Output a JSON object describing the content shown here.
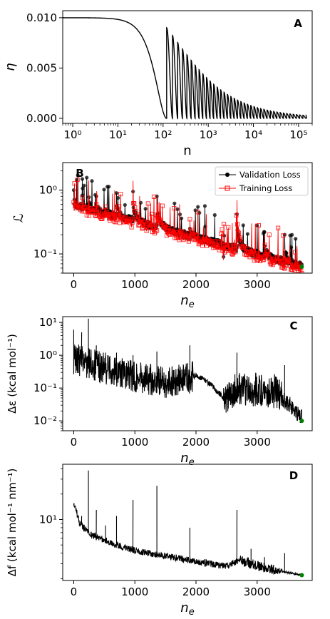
{
  "chart_data": [
    {
      "panel": "A",
      "type": "line",
      "xlabel": "n",
      "ylabel": "η",
      "xscale": "log",
      "xlim": [
        0.6,
        200000
      ],
      "ylim": [
        -0.0005,
        0.0107
      ],
      "xticks": [
        {
          "value": 1,
          "label": "10⁰"
        },
        {
          "value": 10,
          "label": "10¹"
        },
        {
          "value": 100,
          "label": "10²"
        },
        {
          "value": 1000,
          "label": "10³"
        },
        {
          "value": 10000,
          "label": "10⁴"
        },
        {
          "value": 100000,
          "label": "10⁵"
        }
      ],
      "yticks": [
        {
          "value": 0.0,
          "label": "0.000"
        },
        {
          "value": 0.005,
          "label": "0.005"
        },
        {
          "value": 0.01,
          "label": "0.010"
        }
      ],
      "color": "#000000",
      "schedule": {
        "eta_max": 0.01,
        "eta_min": 0.0,
        "first_restart": 120,
        "cycle_multiplier": 1.18,
        "n_max": 150000
      }
    },
    {
      "panel": "B",
      "type": "line",
      "xlabel": "n_e",
      "ylabel": "ℒ",
      "yscale": "log",
      "xlim": [
        -180,
        3900
      ],
      "ylim": [
        0.05,
        2.7
      ],
      "xticks": [
        {
          "value": 0,
          "label": "0"
        },
        {
          "value": 1000,
          "label": "1000"
        },
        {
          "value": 2000,
          "label": "2000"
        },
        {
          "value": 3000,
          "label": "3000"
        }
      ],
      "yticks": [
        {
          "value": 0.1,
          "label": "10⁻¹"
        },
        {
          "value": 1,
          "label": "10⁰"
        }
      ],
      "legend": "top-right",
      "restarts": [
        0,
        140,
        250,
        370,
        520,
        700,
        970,
        1360,
        1900,
        2450,
        2670,
        3120,
        3450
      ],
      "series": [
        {
          "name": "Validation Loss",
          "color": "#000000",
          "marker": "circle",
          "start": 0.6,
          "end": 0.065,
          "spikes": [
            {
              "x": 0,
              "y": 1.0
            },
            {
              "x": 130,
              "y": 0.85
            },
            {
              "x": 240,
              "y": 2.4
            },
            {
              "x": 370,
              "y": 0.8
            },
            {
              "x": 520,
              "y": 0.5
            },
            {
              "x": 700,
              "y": 0.9
            },
            {
              "x": 970,
              "y": 0.95
            },
            {
              "x": 1360,
              "y": 0.8
            },
            {
              "x": 1900,
              "y": 0.25
            },
            {
              "x": 2450,
              "y": 0.09
            },
            {
              "x": 2670,
              "y": 0.42
            },
            {
              "x": 3120,
              "y": 0.22
            },
            {
              "x": 3450,
              "y": 0.2
            }
          ]
        },
        {
          "name": "Training Loss",
          "color": "#ff0000",
          "marker": "square",
          "start": 0.55,
          "end": 0.06,
          "spikes": [
            {
              "x": 0,
              "y": 0.65
            },
            {
              "x": 130,
              "y": 0.5
            },
            {
              "x": 240,
              "y": 0.7
            },
            {
              "x": 370,
              "y": 0.6
            },
            {
              "x": 520,
              "y": 0.55
            },
            {
              "x": 700,
              "y": 0.6
            },
            {
              "x": 970,
              "y": 1.4
            },
            {
              "x": 1360,
              "y": 0.6
            },
            {
              "x": 1900,
              "y": 0.35
            },
            {
              "x": 2450,
              "y": 0.08
            },
            {
              "x": 2670,
              "y": 0.7
            },
            {
              "x": 3120,
              "y": 0.2
            },
            {
              "x": 3450,
              "y": 0.12
            }
          ]
        }
      ],
      "final_point": {
        "x": 3730,
        "y": 0.063,
        "color": "#008000"
      }
    },
    {
      "panel": "C",
      "type": "line",
      "xlabel": "n_e",
      "ylabel": "Δε (kcal mol⁻¹)",
      "yscale": "log",
      "xlim": [
        -180,
        3900
      ],
      "ylim": [
        0.005,
        15
      ],
      "xticks": [
        {
          "value": 0,
          "label": "0"
        },
        {
          "value": 1000,
          "label": "1000"
        },
        {
          "value": 2000,
          "label": "2000"
        },
        {
          "value": 3000,
          "label": "3000"
        }
      ],
      "yticks": [
        {
          "value": 0.01,
          "label": "10⁻²"
        },
        {
          "value": 0.1,
          "label": "10⁻¹"
        },
        {
          "value": 1,
          "label": "10⁰"
        },
        {
          "value": 10,
          "label": "10¹"
        }
      ],
      "color": "#000000",
      "trend": [
        {
          "x": 0,
          "y": 0.8
        },
        {
          "x": 500,
          "y": 0.4
        },
        {
          "x": 1000,
          "y": 0.22
        },
        {
          "x": 1500,
          "y": 0.15
        },
        {
          "x": 1900,
          "y": 0.2
        },
        {
          "x": 2000,
          "y": 0.25
        },
        {
          "x": 2200,
          "y": 0.15
        },
        {
          "x": 2500,
          "y": 0.04
        },
        {
          "x": 2650,
          "y": 0.1
        },
        {
          "x": 3300,
          "y": 0.08
        },
        {
          "x": 3700,
          "y": 0.015
        }
      ],
      "spikes": [
        {
          "x": 0,
          "y": 6
        },
        {
          "x": 130,
          "y": 5
        },
        {
          "x": 240,
          "y": 13
        },
        {
          "x": 370,
          "y": 2
        },
        {
          "x": 520,
          "y": 1.2
        },
        {
          "x": 700,
          "y": 1.2
        },
        {
          "x": 970,
          "y": 1.0
        },
        {
          "x": 1360,
          "y": 1.3
        },
        {
          "x": 1900,
          "y": 2.0
        },
        {
          "x": 2670,
          "y": 1.2
        },
        {
          "x": 3450,
          "y": 0.5
        }
      ],
      "final_point": {
        "x": 3730,
        "y": 0.01,
        "color": "#008000"
      }
    },
    {
      "panel": "D",
      "type": "line",
      "xlabel": "n_e",
      "ylabel": "Δf (kcal mol⁻¹ nm⁻¹)",
      "yscale": "log",
      "xlim": [
        -180,
        3900
      ],
      "ylim": [
        1.9,
        45
      ],
      "xticks": [
        {
          "value": 0,
          "label": "0"
        },
        {
          "value": 1000,
          "label": "1000"
        },
        {
          "value": 2000,
          "label": "2000"
        },
        {
          "value": 3000,
          "label": "3000"
        }
      ],
      "yticks": [
        {
          "value": 10,
          "label": "10¹"
        }
      ],
      "color": "#000000",
      "trend": [
        {
          "x": 0,
          "y": 16
        },
        {
          "x": 100,
          "y": 9
        },
        {
          "x": 300,
          "y": 6.5
        },
        {
          "x": 700,
          "y": 5
        },
        {
          "x": 1000,
          "y": 4.3
        },
        {
          "x": 1400,
          "y": 3.8
        },
        {
          "x": 1900,
          "y": 3.3
        },
        {
          "x": 2500,
          "y": 2.8
        },
        {
          "x": 2700,
          "y": 3.3
        },
        {
          "x": 3200,
          "y": 2.6
        },
        {
          "x": 3730,
          "y": 2.2
        }
      ],
      "spikes": [
        {
          "x": 130,
          "y": 11
        },
        {
          "x": 240,
          "y": 38
        },
        {
          "x": 370,
          "y": 13
        },
        {
          "x": 520,
          "y": 8.5
        },
        {
          "x": 700,
          "y": 11
        },
        {
          "x": 970,
          "y": 17
        },
        {
          "x": 1360,
          "y": 25
        },
        {
          "x": 1900,
          "y": 8
        },
        {
          "x": 2450,
          "y": 3.0
        },
        {
          "x": 2670,
          "y": 13
        },
        {
          "x": 2900,
          "y": 4.5
        },
        {
          "x": 3120,
          "y": 3.6
        },
        {
          "x": 3450,
          "y": 4.0
        }
      ],
      "final_point": {
        "x": 3730,
        "y": 2.2,
        "color": "#008000"
      }
    }
  ]
}
